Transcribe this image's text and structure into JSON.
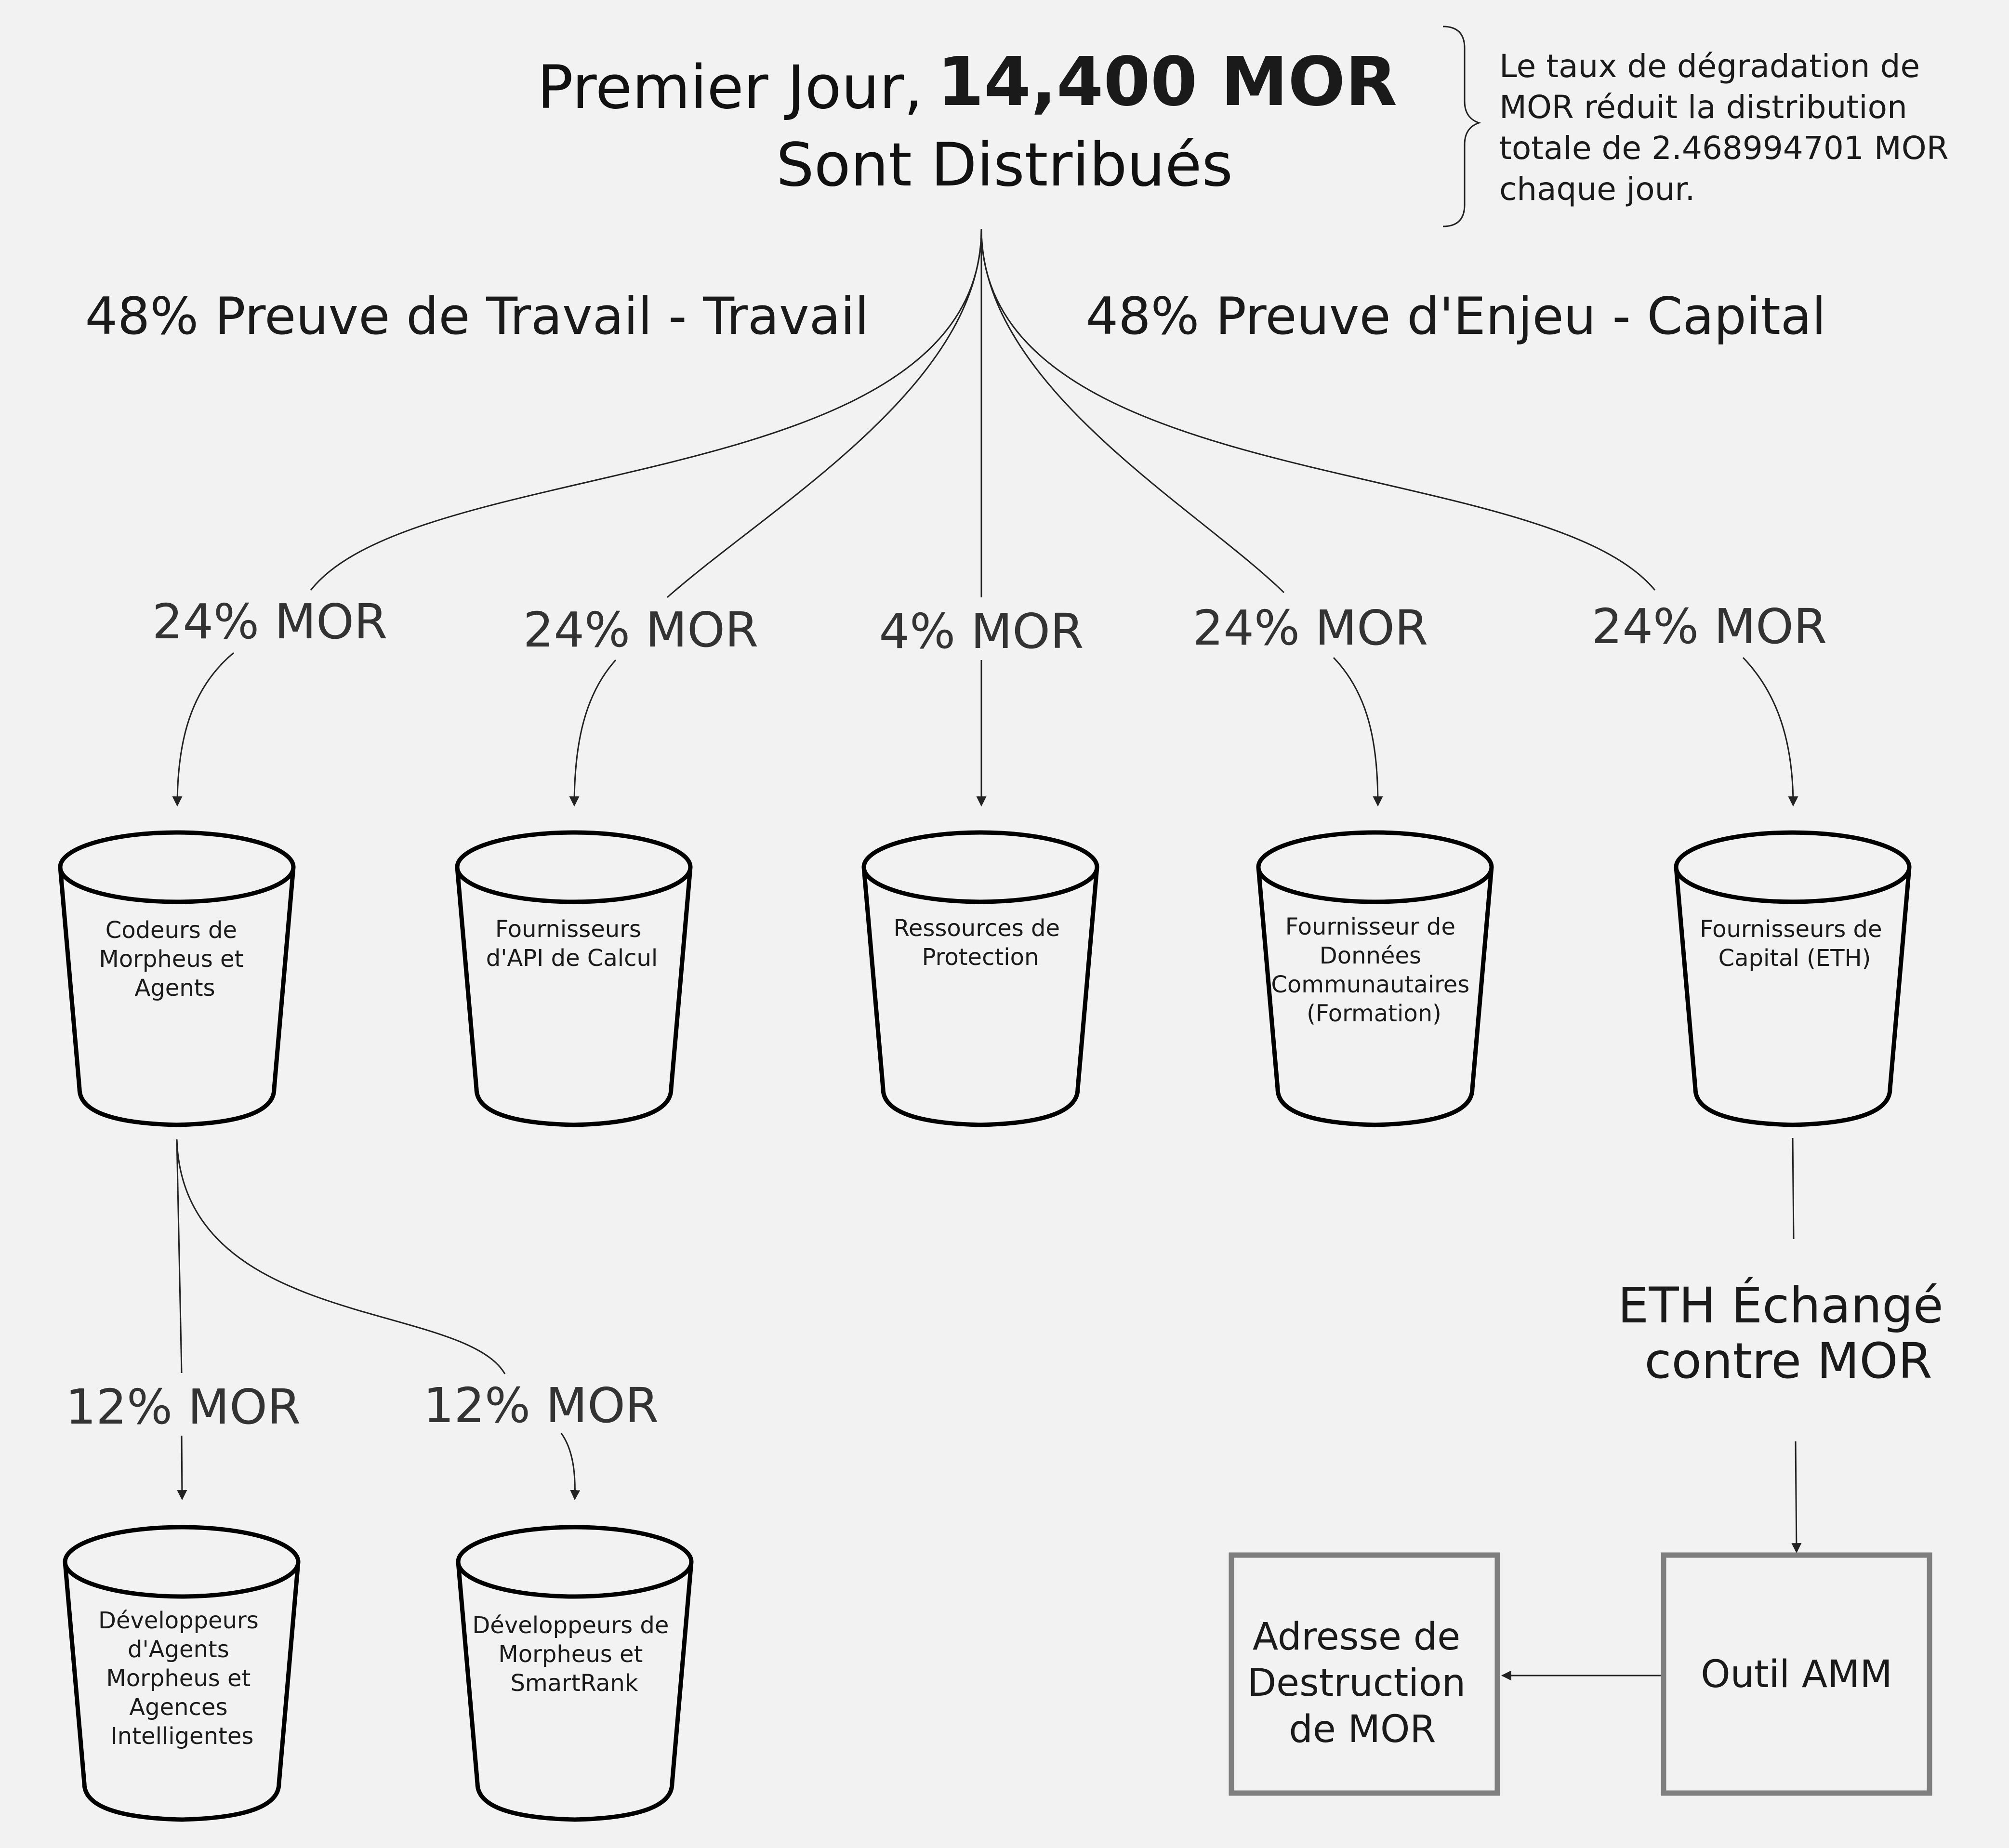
{
  "header": {
    "title_line1_prefix": "Premier Jour,",
    "title_amount": "14,400 MOR",
    "title_line2": "Sont Distribués"
  },
  "note": {
    "lines": [
      "Le taux de dégradation de",
      "MOR réduit la distribution",
      "totale de 2.468994701 MOR",
      "chaque jour."
    ]
  },
  "sections": {
    "work": "48% Preuve de Travail - Travail",
    "capital": "48% Preuve d'Enjeu - Capital"
  },
  "allocations": [
    {
      "percent": "24% MOR",
      "bucket_lines": [
        "Codeurs de",
        "Morpheus et",
        "Agents"
      ]
    },
    {
      "percent": "24% MOR",
      "bucket_lines": [
        "Fournisseurs",
        "d'API de Calcul"
      ]
    },
    {
      "percent": "4% MOR",
      "bucket_lines": [
        "Ressources de",
        "Protection"
      ]
    },
    {
      "percent": "24% MOR",
      "bucket_lines": [
        "Fournisseur de",
        "Données",
        "Communautaires",
        "(Formation)"
      ]
    },
    {
      "percent": "24% MOR",
      "bucket_lines": [
        "Fournisseurs de",
        "Capital (ETH)"
      ]
    }
  ],
  "sub_allocations": [
    {
      "percent": "12% MOR",
      "bucket_lines": [
        "Développeurs",
        "d'Agents",
        "Morpheus et",
        "Agences",
        "Intelligentes"
      ]
    },
    {
      "percent": "12% MOR",
      "bucket_lines": [
        "Développeurs de",
        "Morpheus et",
        "SmartRank"
      ]
    }
  ],
  "exchange": {
    "lines": [
      "ETH Échangé",
      "contre MOR"
    ]
  },
  "boxes": {
    "amm_tool": "Outil AMM",
    "burn_address_lines": [
      "Adresse de",
      "Destruction",
      "de MOR"
    ]
  }
}
